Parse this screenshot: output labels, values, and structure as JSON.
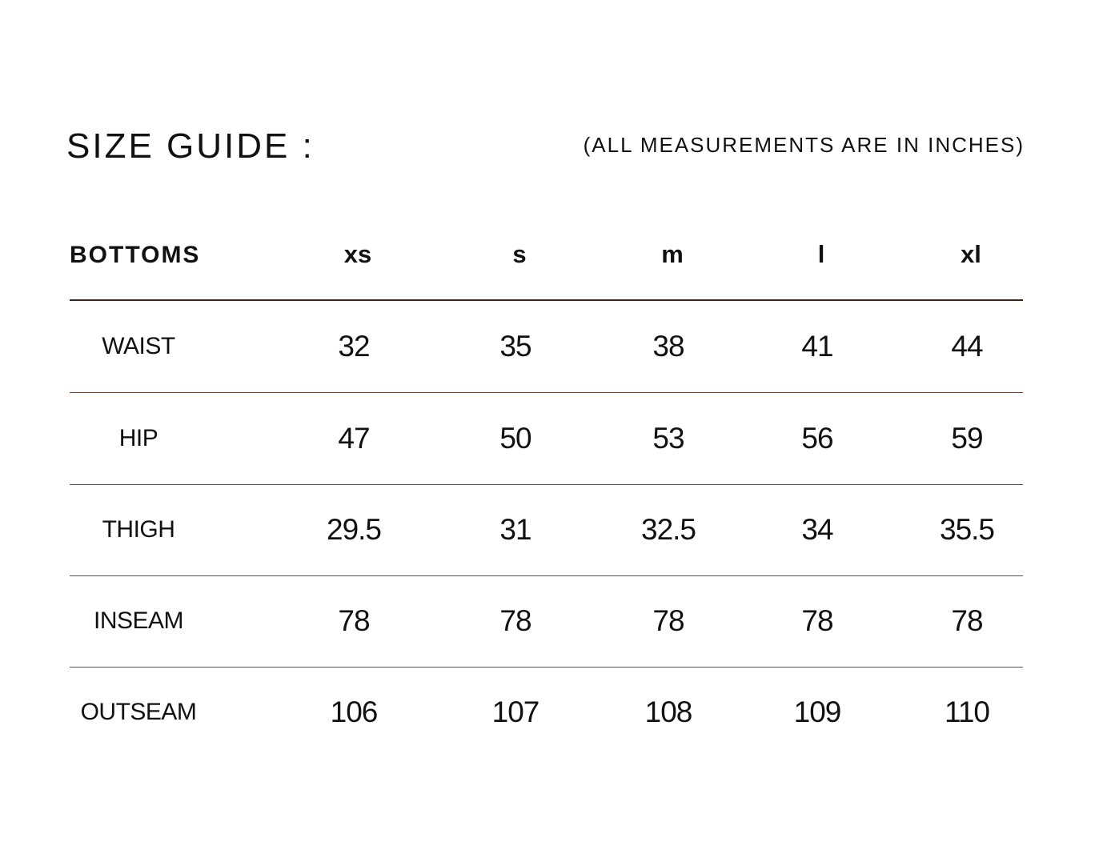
{
  "header": {
    "title": "SIZE GUIDE :",
    "note": "(ALL MEASUREMENTS ARE IN INCHES)"
  },
  "table": {
    "columns": [
      "BOTTOMS",
      "xs",
      "s",
      "m",
      "l",
      "xl"
    ],
    "rows": [
      [
        "WAIST",
        "32",
        "35",
        "38",
        "41",
        "44"
      ],
      [
        "HIP",
        "47",
        "50",
        "53",
        "56",
        "59"
      ],
      [
        "THIGH",
        "29.5",
        "31",
        "32.5",
        "34",
        "35.5"
      ],
      [
        "INSEAM",
        "78",
        "78",
        "78",
        "78",
        "78"
      ],
      [
        "OUTSEAM",
        "106",
        "107",
        "108",
        "109",
        "110"
      ]
    ]
  }
}
